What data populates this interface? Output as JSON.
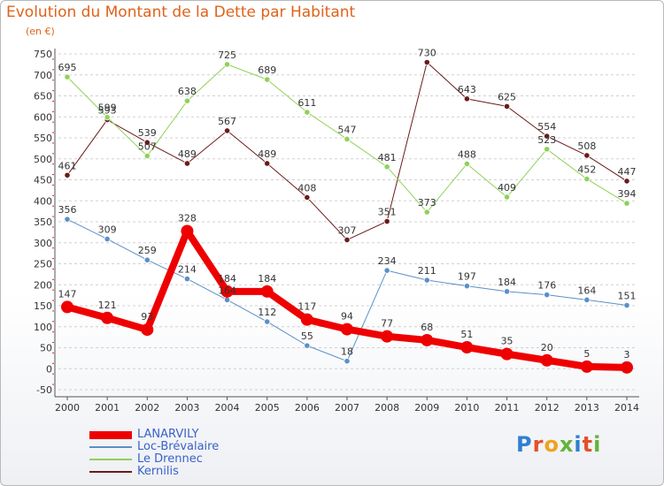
{
  "header": {
    "title": "Evolution du Montant de la Dette par Habitant",
    "unit": "(en €)"
  },
  "logo": {
    "text": "Proxiti",
    "letter_colors": [
      "#2f7fd1",
      "#e4512a",
      "#f0a21c",
      "#64b33a",
      "#2f7fd1",
      "#e4512a",
      "#64b33a"
    ]
  },
  "colors": {
    "axis": "#555555",
    "grid": "#d0d0d0",
    "tick_text": "#333333",
    "value_text": "#333333"
  },
  "chart_data": {
    "type": "line",
    "title": "Evolution du Montant de la Dette par Habitant",
    "subtitle": "(en €)",
    "x": [
      "2000",
      "2001",
      "2002",
      "2003",
      "2004",
      "2005",
      "2006",
      "2007",
      "2008",
      "2009",
      "2010",
      "2011",
      "2012",
      "2013",
      "2014"
    ],
    "ylim": [
      -50,
      750
    ],
    "yticks": [
      -50,
      0,
      50,
      100,
      150,
      200,
      250,
      300,
      350,
      400,
      450,
      500,
      550,
      600,
      650,
      700,
      750
    ],
    "grid": "horizontal dashed",
    "legend_position": "bottom-left",
    "series": [
      {
        "name": "Kernilis",
        "color": "#6b1a1a",
        "width": 1,
        "values": [
          461,
          593,
          539,
          489,
          567,
          489,
          408,
          307,
          351,
          730,
          643,
          625,
          554,
          508,
          447
        ]
      },
      {
        "name": "Le Drennec",
        "color": "#8fd15a",
        "width": 1,
        "values": [
          695,
          599,
          507,
          638,
          725,
          689,
          611,
          547,
          481,
          373,
          488,
          409,
          523,
          452,
          394
        ]
      },
      {
        "name": "Loc-Brévalaire",
        "color": "#5b8fc8",
        "width": 1,
        "values": [
          356,
          309,
          259,
          214,
          164,
          112,
          55,
          18,
          234,
          211,
          197,
          184,
          176,
          164,
          151
        ]
      },
      {
        "name": "LANARVILY",
        "color": "#ee0000",
        "width": 8,
        "values": [
          147,
          121,
          93,
          328,
          184,
          184,
          117,
          94,
          77,
          68,
          51,
          35,
          20,
          5,
          3
        ]
      }
    ],
    "legend_order": [
      "LANARVILY",
      "Loc-Brévalaire",
      "Le Drennec",
      "Kernilis"
    ]
  }
}
